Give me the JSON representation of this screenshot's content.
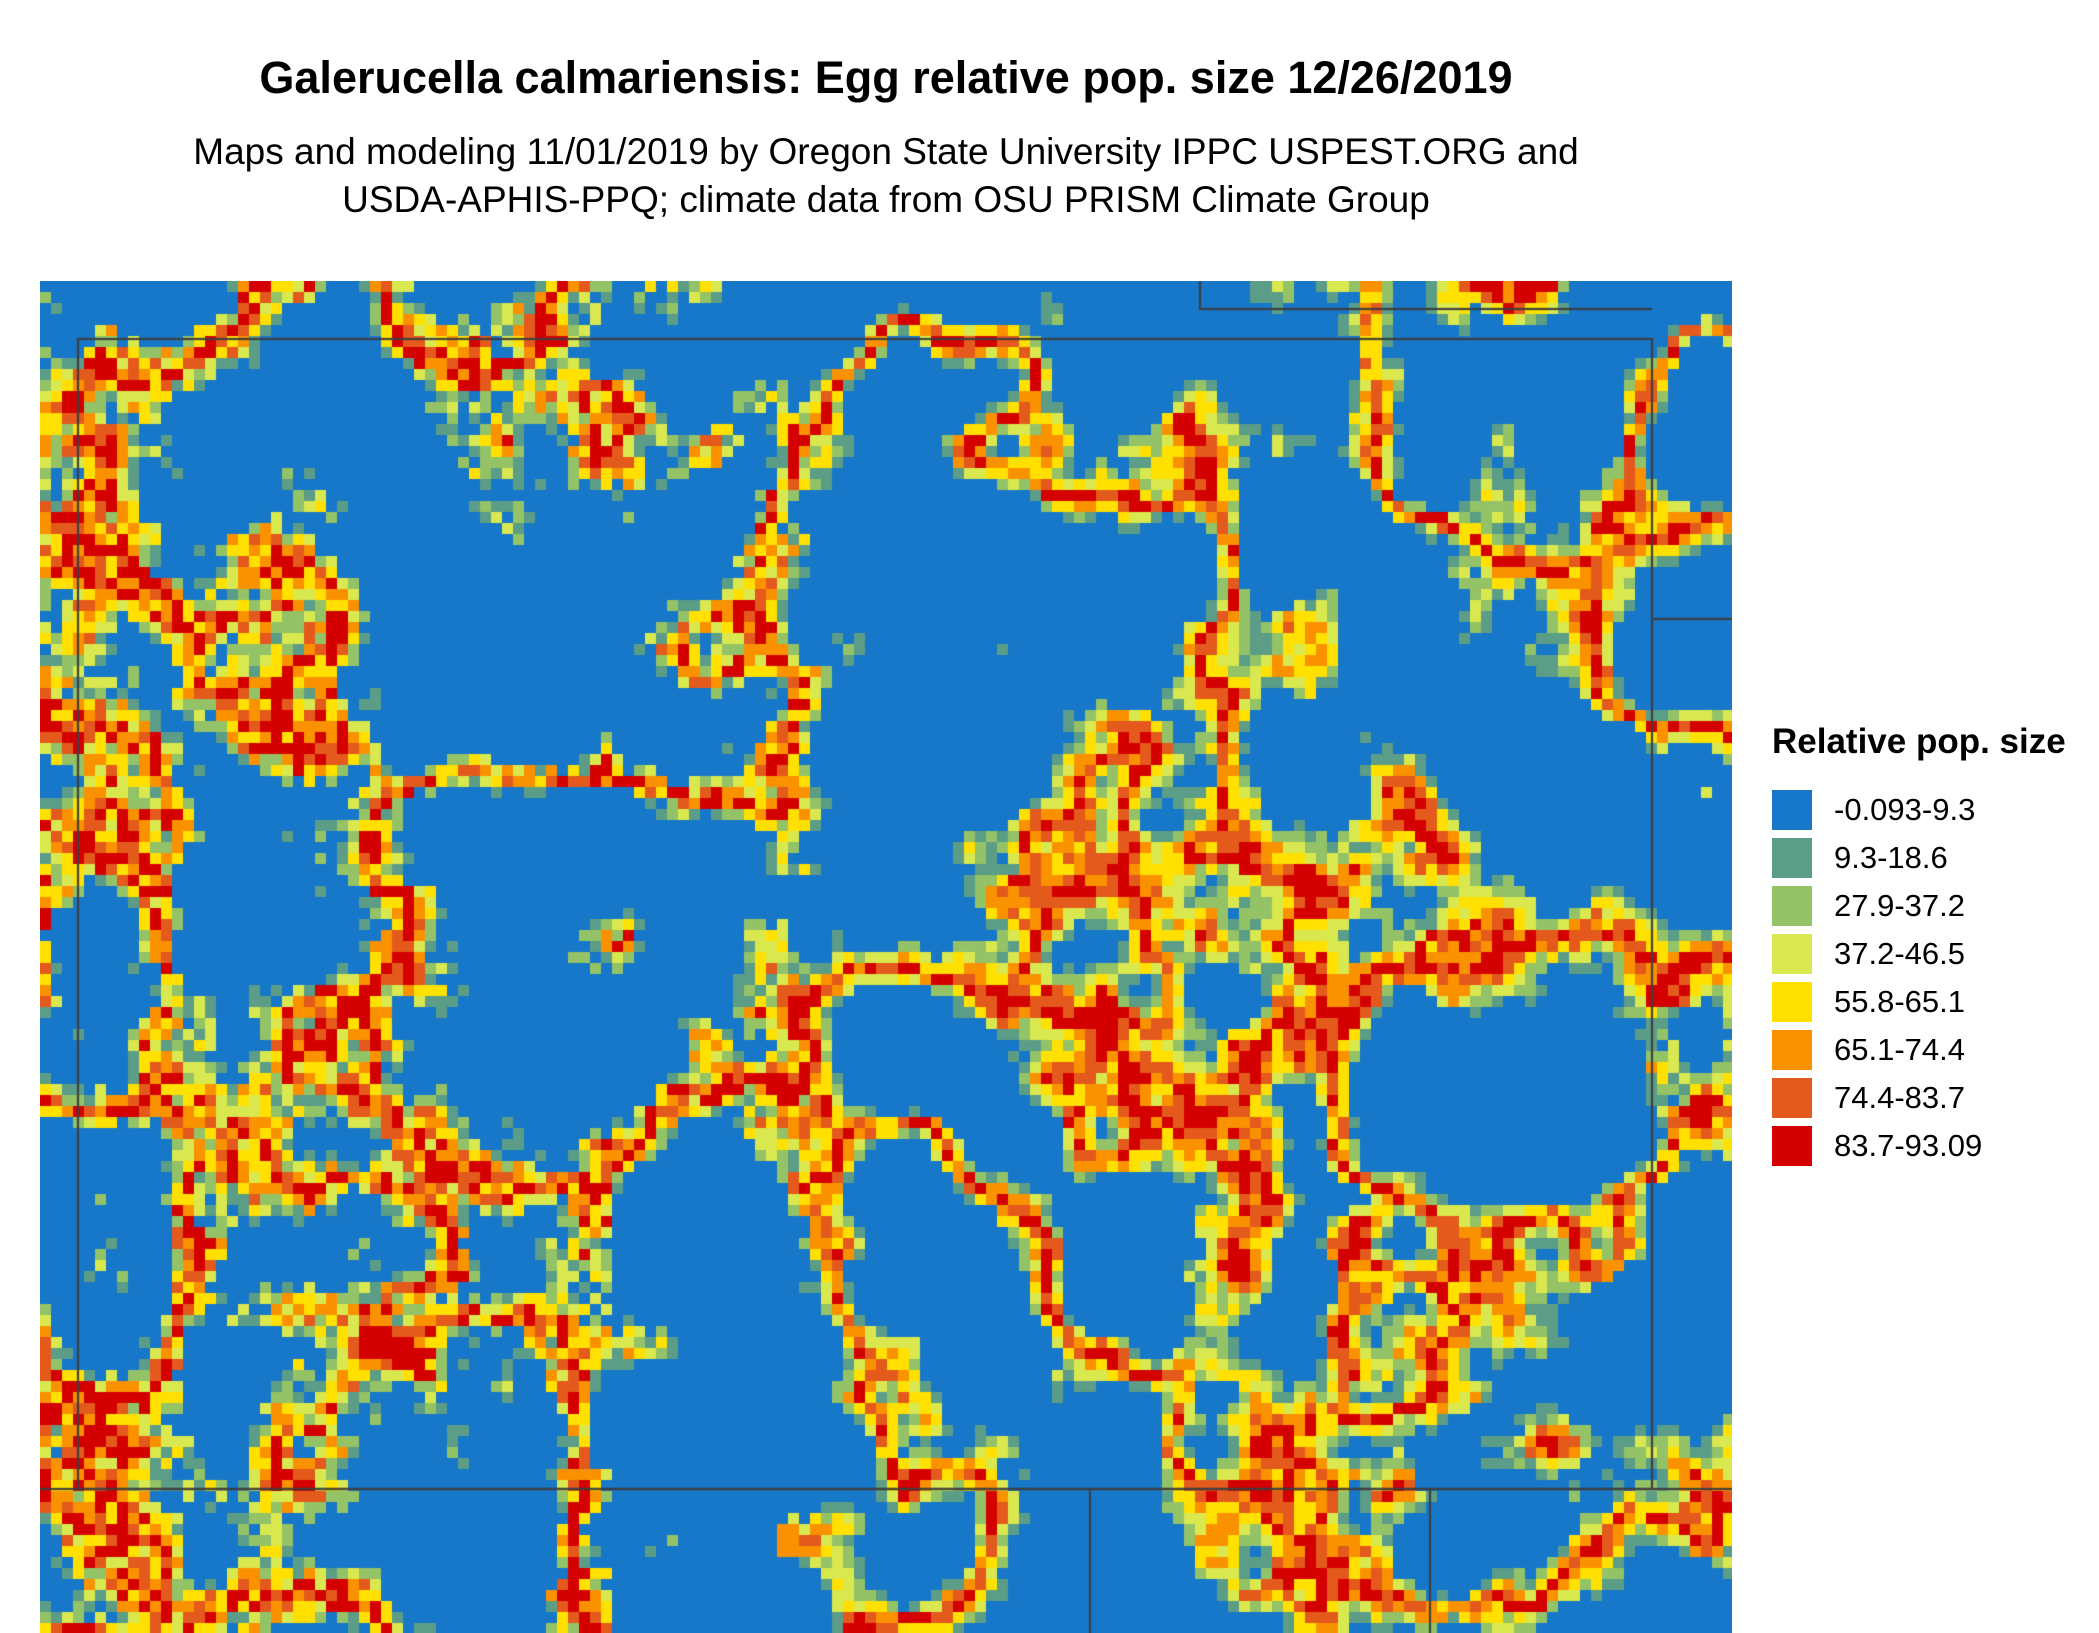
{
  "header": {
    "title": "Galerucella calmariensis: Egg relative pop. size 12/26/2019",
    "subtitle_line1": "Maps and modeling 11/01/2019 by Oregon State University IPPC USPEST.ORG and",
    "subtitle_line2": "USDA-APHIS-PPQ; climate data from OSU PRISM Climate Group"
  },
  "legend": {
    "title": "Relative pop. size",
    "items": [
      {
        "label": "-0.093-9.3",
        "color": "#1777c8"
      },
      {
        "label": "9.3-18.6",
        "color": "#5b9d87"
      },
      {
        "label": "27.9-37.2",
        "color": "#94c267"
      },
      {
        "label": "37.2-46.5",
        "color": "#d9e84f"
      },
      {
        "label": "55.8-65.1",
        "color": "#ffe000"
      },
      {
        "label": "65.1-74.4",
        "color": "#fa9200"
      },
      {
        "label": "74.4-83.7",
        "color": "#e4591c"
      },
      {
        "label": "83.7-93.09",
        "color": "#d40000"
      }
    ]
  },
  "map": {
    "background_color": "#1777c8",
    "boundary_color": "#3d3d3d"
  }
}
